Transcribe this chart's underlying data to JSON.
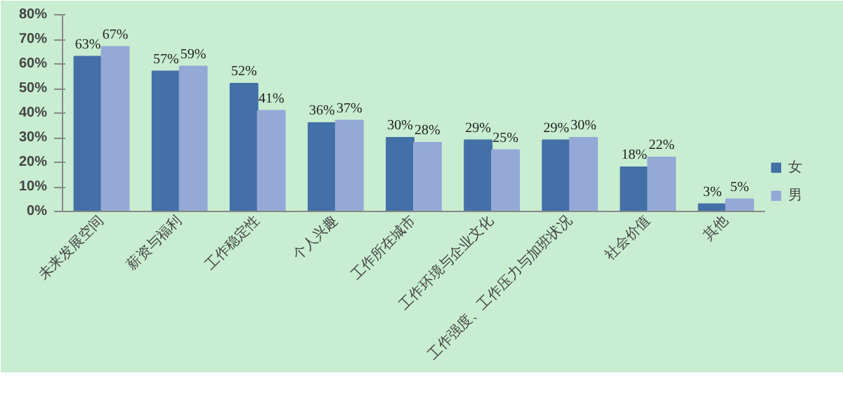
{
  "chart_data": {
    "type": "bar",
    "categories": [
      "未来发展空间",
      "薪资与福利",
      "工作稳定性",
      "个人兴趣",
      "工作所在城市",
      "工作环境与企业文化",
      "工作强度、工作压力与加班状况",
      "社会价值",
      "其他"
    ],
    "series": [
      {
        "name": "女",
        "color": "#4470a8",
        "values": [
          63,
          57,
          52,
          36,
          30,
          29,
          29,
          18,
          3
        ],
        "value_labels": [
          "63%",
          "57%",
          "52%",
          "36%",
          "30%",
          "29%",
          "29%",
          "18%",
          "3%"
        ]
      },
      {
        "name": "男",
        "color": "#95a9d6",
        "values": [
          67,
          59,
          41,
          37,
          28,
          25,
          30,
          22,
          5
        ],
        "value_labels": [
          "67%",
          "59%",
          "41%",
          "37%",
          "28%",
          "25%",
          "30%",
          "22%",
          "5%"
        ]
      }
    ],
    "ylim": [
      0,
      80
    ],
    "yticks": [
      {
        "value": 0,
        "label": "0%"
      },
      {
        "value": 10,
        "label": "10%"
      },
      {
        "value": 20,
        "label": "20%"
      },
      {
        "value": 30,
        "label": "30%"
      },
      {
        "value": 40,
        "label": "40%"
      },
      {
        "value": 50,
        "label": "50%"
      },
      {
        "value": 60,
        "label": "60%"
      },
      {
        "value": 70,
        "label": "70%"
      },
      {
        "value": 80,
        "label": "80%"
      }
    ],
    "grid": false,
    "legend": "right"
  }
}
